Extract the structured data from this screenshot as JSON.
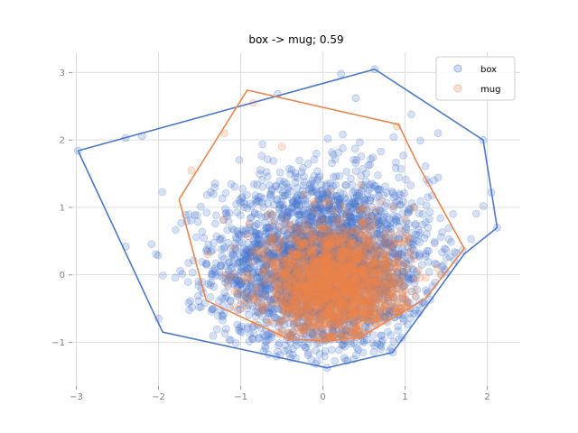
{
  "chart_data": {
    "type": "scatter",
    "title": "box -> mug; 0.59",
    "xlabel": "",
    "ylabel": "",
    "xlim": [
      -3.05,
      2.4
    ],
    "ylim": [
      -1.65,
      3.3
    ],
    "xticks": [
      -3,
      -2,
      -1,
      0,
      1,
      2
    ],
    "yticks": [
      -1,
      0,
      1,
      2,
      3
    ],
    "grid": true,
    "legend_position": "top-right",
    "series": [
      {
        "name": "box",
        "color": "#4878cf",
        "approx_count": 3000,
        "center": [
          0.0,
          0.15
        ],
        "spread": [
          0.65,
          0.65
        ],
        "hull": [
          [
            -2.98,
            1.84
          ],
          [
            0.63,
            3.05
          ],
          [
            1.95,
            2.0
          ],
          [
            2.12,
            0.7
          ],
          [
            1.72,
            0.31
          ],
          [
            0.85,
            -1.15
          ],
          [
            0.05,
            -1.38
          ],
          [
            -1.95,
            -0.85
          ],
          [
            -2.98,
            1.84
          ]
        ],
        "outliers": [
          [
            -2.98,
            1.84
          ],
          [
            -2.4,
            2.03
          ],
          [
            -2.2,
            2.06
          ],
          [
            0.63,
            3.05
          ],
          [
            0.22,
            2.98
          ],
          [
            1.95,
            2.0
          ],
          [
            2.12,
            0.7
          ],
          [
            2.05,
            1.22
          ],
          [
            1.4,
            2.1
          ],
          [
            -2.4,
            0.42
          ],
          [
            -2.0,
            -0.65
          ],
          [
            0.05,
            -1.38
          ],
          [
            0.85,
            -1.15
          ],
          [
            -0.55,
            2.68
          ],
          [
            0.4,
            2.62
          ]
        ]
      },
      {
        "name": "mug",
        "color": "#ee854a",
        "approx_count": 1800,
        "center": [
          0.15,
          -0.15
        ],
        "spread": [
          0.42,
          0.45
        ],
        "hull": [
          [
            -1.75,
            1.12
          ],
          [
            -0.92,
            2.74
          ],
          [
            0.92,
            2.23
          ],
          [
            1.15,
            1.65
          ],
          [
            1.72,
            0.39
          ],
          [
            1.25,
            -0.35
          ],
          [
            0.45,
            -0.93
          ],
          [
            0.05,
            -0.98
          ],
          [
            -0.42,
            -0.95
          ],
          [
            -1.42,
            -0.38
          ],
          [
            -1.75,
            1.12
          ]
        ],
        "outliers": [
          [
            -1.6,
            1.55
          ],
          [
            -1.2,
            2.1
          ],
          [
            -0.85,
            2.55
          ],
          [
            0.9,
            2.2
          ],
          [
            1.1,
            1.0
          ],
          [
            -1.4,
            0.3
          ],
          [
            -0.5,
            1.9
          ]
        ]
      }
    ]
  }
}
